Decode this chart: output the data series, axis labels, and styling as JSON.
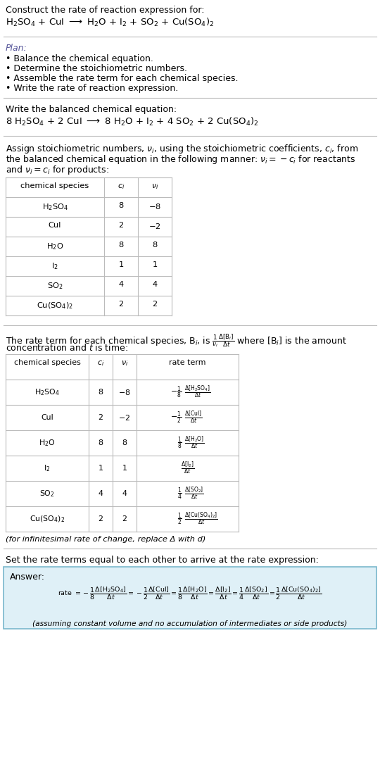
{
  "bg_color": "#ffffff",
  "text_color": "#000000",
  "title": "Construct the rate of reaction expression for:",
  "reaction_unbalanced": "H$_2$SO$_4$ + CuI $\\longrightarrow$ H$_2$O + I$_2$ + SO$_2$ + Cu(SO$_4$)$_2$",
  "plan_title": "Plan:",
  "plan_bullets": [
    "Balance the chemical equation.",
    "Determine the stoichiometric numbers.",
    "Assemble the rate term for each chemical species.",
    "Write the rate of reaction expression."
  ],
  "balanced_title": "Write the balanced chemical equation:",
  "reaction_balanced": "8 H$_2$SO$_4$ + 2 CuI $\\longrightarrow$ 8 H$_2$O + I$_2$ + 4 SO$_2$ + 2 Cu(SO$_4$)$_2$",
  "stoich_intro": "Assign stoichiometric numbers, $\\nu_i$, using the stoichiometric coefficients, $c_i$, from\nthe balanced chemical equation in the following manner: $\\nu_i = -c_i$ for reactants\nand $\\nu_i = c_i$ for products:",
  "table1_species": [
    "H$_2$SO$_4$",
    "CuI",
    "H$_2$O",
    "I$_2$",
    "SO$_2$",
    "Cu(SO$_4$)$_2$"
  ],
  "table1_ci": [
    "8",
    "2",
    "8",
    "1",
    "4",
    "2"
  ],
  "table1_ni": [
    "$-8$",
    "$-2$",
    "8",
    "1",
    "4",
    "2"
  ],
  "rate_intro1": "The rate term for each chemical species, B$_i$, is $\\frac{1}{\\nu_i}\\frac{\\Delta[\\mathrm{B}_i]}{\\Delta t}$ where [B$_i$] is the amount",
  "rate_intro2": "concentration and $t$ is time:",
  "table2_species": [
    "H$_2$SO$_4$",
    "CuI",
    "H$_2$O",
    "I$_2$",
    "SO$_2$",
    "Cu(SO$_4$)$_2$"
  ],
  "table2_ci": [
    "8",
    "2",
    "8",
    "1",
    "4",
    "2"
  ],
  "table2_ni": [
    "$-8$",
    "$-2$",
    "8",
    "1",
    "4",
    "2"
  ],
  "table2_rate_num": [
    "$-1$",
    "$-1$",
    "$1$",
    "",
    "$1$",
    "$1$"
  ],
  "table2_rate_den": [
    "8",
    "2",
    "8",
    "",
    "4",
    "2"
  ],
  "table2_rate_species": [
    "H$_2$SO$_4$",
    "CuI",
    "H$_2$O",
    "I$_2$",
    "SO$_2$",
    "Cu(SO$_4$)$_2$"
  ],
  "footnote": "(for infinitesimal rate of change, replace Δ with d)",
  "set_equal": "Set the rate terms equal to each other to arrive at the rate expression:",
  "answer_label": "Answer:",
  "answer_box_bg": "#dff0f7",
  "answer_box_border": "#7ab8cc",
  "answer_footnote": "(assuming constant volume and no accumulation of intermediates or side products)"
}
